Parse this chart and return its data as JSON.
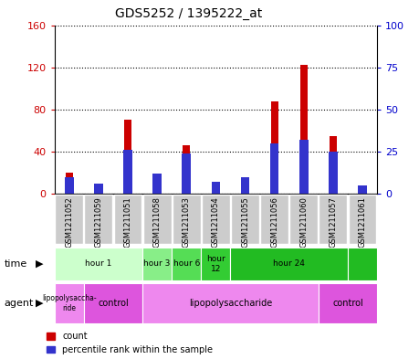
{
  "title": "GDS5252 / 1395222_at",
  "samples": [
    "GSM1211052",
    "GSM1211059",
    "GSM1211051",
    "GSM1211058",
    "GSM1211053",
    "GSM1211054",
    "GSM1211055",
    "GSM1211056",
    "GSM1211060",
    "GSM1211057",
    "GSM1211061"
  ],
  "counts": [
    20,
    7,
    70,
    16,
    46,
    9,
    12,
    88,
    122,
    55,
    5
  ],
  "percentile_ranks": [
    10,
    6,
    26,
    12,
    24,
    7,
    10,
    30,
    32,
    25,
    5
  ],
  "ylim_left": [
    0,
    160
  ],
  "ylim_right": [
    0,
    100
  ],
  "yticks_left": [
    0,
    40,
    80,
    120,
    160
  ],
  "yticks_right": [
    0,
    25,
    50,
    75,
    100
  ],
  "bar_color_count": "#cc0000",
  "bar_color_pct": "#3333cc",
  "tick_label_color_left": "#cc0000",
  "tick_label_color_right": "#0000cc",
  "time_data": [
    {
      "start": 0,
      "end": 3,
      "label": "hour 1",
      "color": "#ccffcc"
    },
    {
      "start": 3,
      "end": 4,
      "label": "hour 3",
      "color": "#88ee88"
    },
    {
      "start": 4,
      "end": 5,
      "label": "hour 6",
      "color": "#55dd55"
    },
    {
      "start": 5,
      "end": 6,
      "label": "hour\n12",
      "color": "#33cc33"
    },
    {
      "start": 6,
      "end": 10,
      "label": "hour 24",
      "color": "#22bb22"
    },
    {
      "start": 10,
      "end": 11,
      "label": "",
      "color": "#22bb22"
    }
  ],
  "agent_data": [
    {
      "start": 0,
      "end": 1,
      "label": "lipopolysaccha-\nride",
      "color": "#ee88ee"
    },
    {
      "start": 1,
      "end": 3,
      "label": "control",
      "color": "#dd55dd"
    },
    {
      "start": 3,
      "end": 9,
      "label": "lipopolysaccharide",
      "color": "#ee88ee"
    },
    {
      "start": 9,
      "end": 11,
      "label": "control",
      "color": "#dd55dd"
    }
  ]
}
